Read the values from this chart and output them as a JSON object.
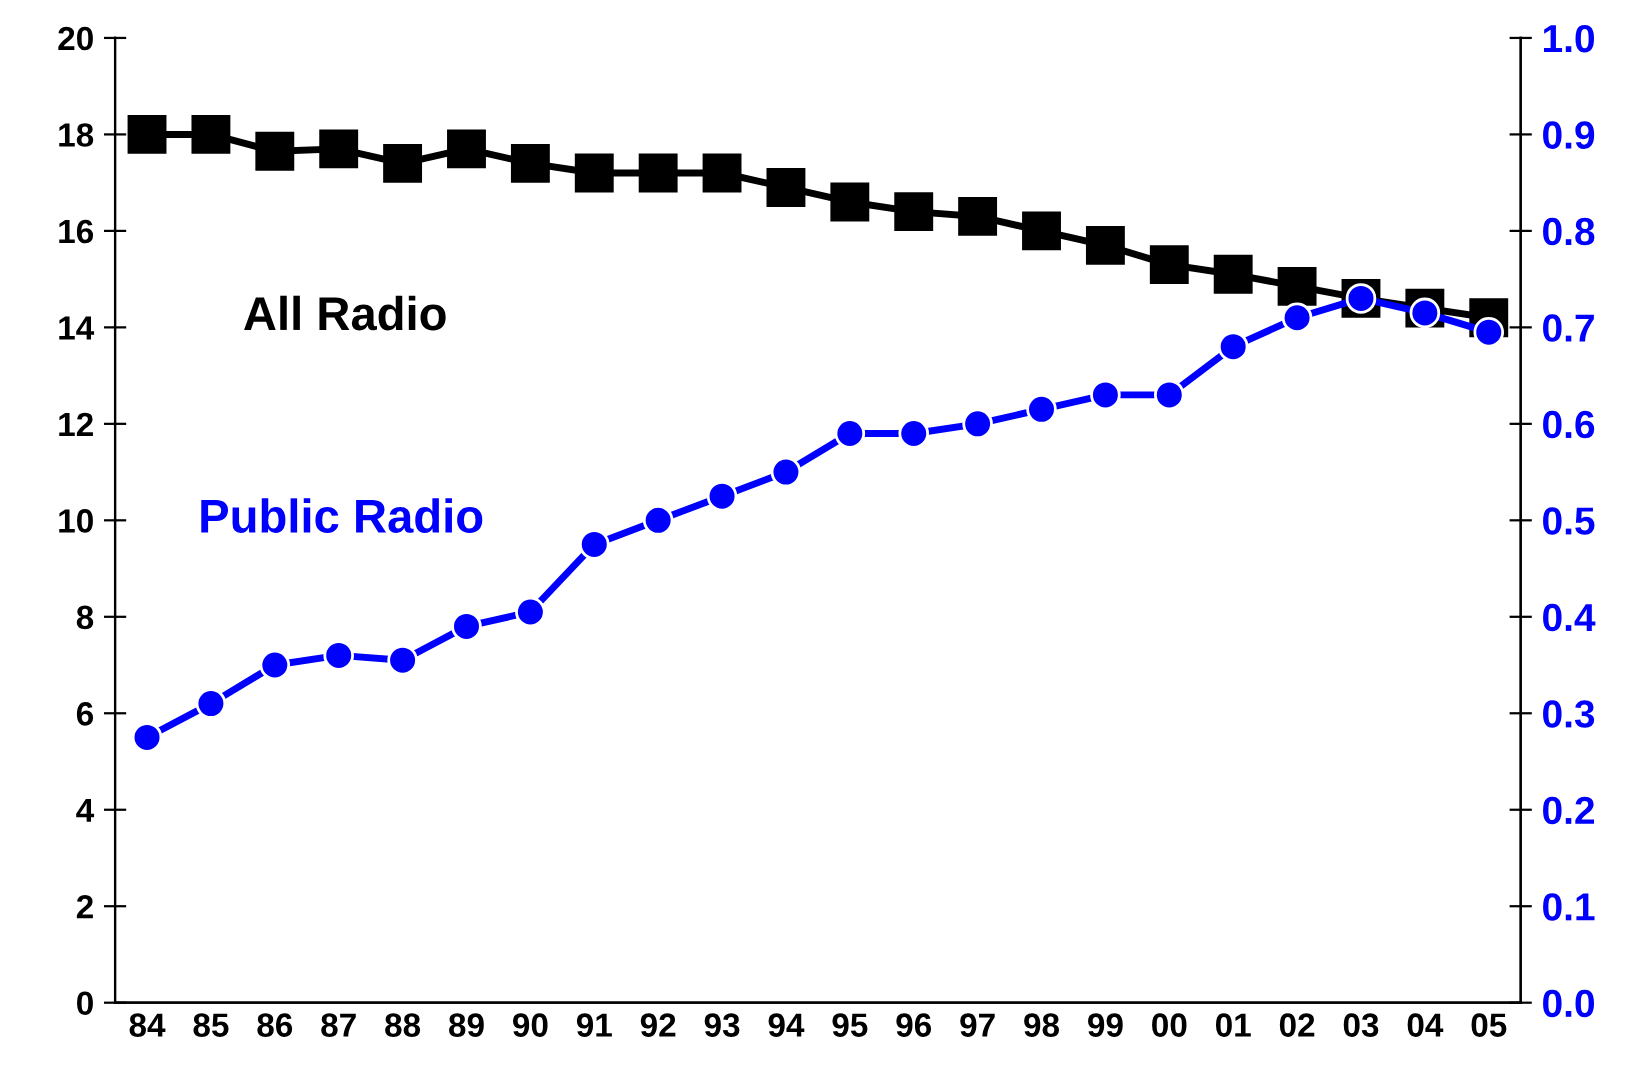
{
  "chart_data": {
    "type": "line",
    "categories": [
      "84",
      "85",
      "86",
      "87",
      "88",
      "89",
      "90",
      "91",
      "92",
      "93",
      "94",
      "95",
      "96",
      "97",
      "98",
      "99",
      "00",
      "01",
      "02",
      "03",
      "04",
      "05"
    ],
    "series": [
      {
        "name": "All Radio",
        "color": "#000000",
        "marker": "square",
        "values": [
          18,
          18,
          17.65,
          17.7,
          17.4,
          17.7,
          17.4,
          17.2,
          17.2,
          17.2,
          16.9,
          16.6,
          16.4,
          16.3,
          16.0,
          15.7,
          15.3,
          15.1,
          14.85,
          14.6,
          14.4,
          14.2
        ]
      },
      {
        "name": "Public Radio",
        "color": "#0000ff",
        "marker": "circle",
        "axis": "y2",
        "values": [
          0.275,
          0.31,
          0.35,
          0.36,
          0.355,
          0.39,
          0.405,
          0.475,
          0.5,
          0.525,
          0.55,
          0.59,
          0.59,
          0.6,
          0.615,
          0.63,
          0.63,
          0.68,
          0.71,
          0.73,
          0.715,
          0.695
        ]
      }
    ],
    "ylim": [
      0,
      20
    ],
    "yticks": [
      0,
      2,
      4,
      6,
      8,
      10,
      12,
      14,
      16,
      18,
      20
    ],
    "y2lim": [
      0,
      1
    ],
    "y2ticks": [
      {
        "value": 0,
        "label": "0.0"
      },
      {
        "value": 0.1,
        "label": "0.1"
      },
      {
        "value": 0.2,
        "label": "0.2"
      },
      {
        "value": 0.3,
        "label": "0.3"
      },
      {
        "value": 0.4,
        "label": "0.4"
      },
      {
        "value": 0.5,
        "label": "0.5"
      },
      {
        "value": 0.6,
        "label": "0.6"
      },
      {
        "value": 0.7,
        "label": "0.7"
      },
      {
        "value": 0.8,
        "label": "0.8"
      },
      {
        "value": 0.9,
        "label": "0.9"
      },
      {
        "value": 1,
        "label": "1.0"
      }
    ],
    "grid": false,
    "legend": false,
    "line_style": "solid"
  }
}
